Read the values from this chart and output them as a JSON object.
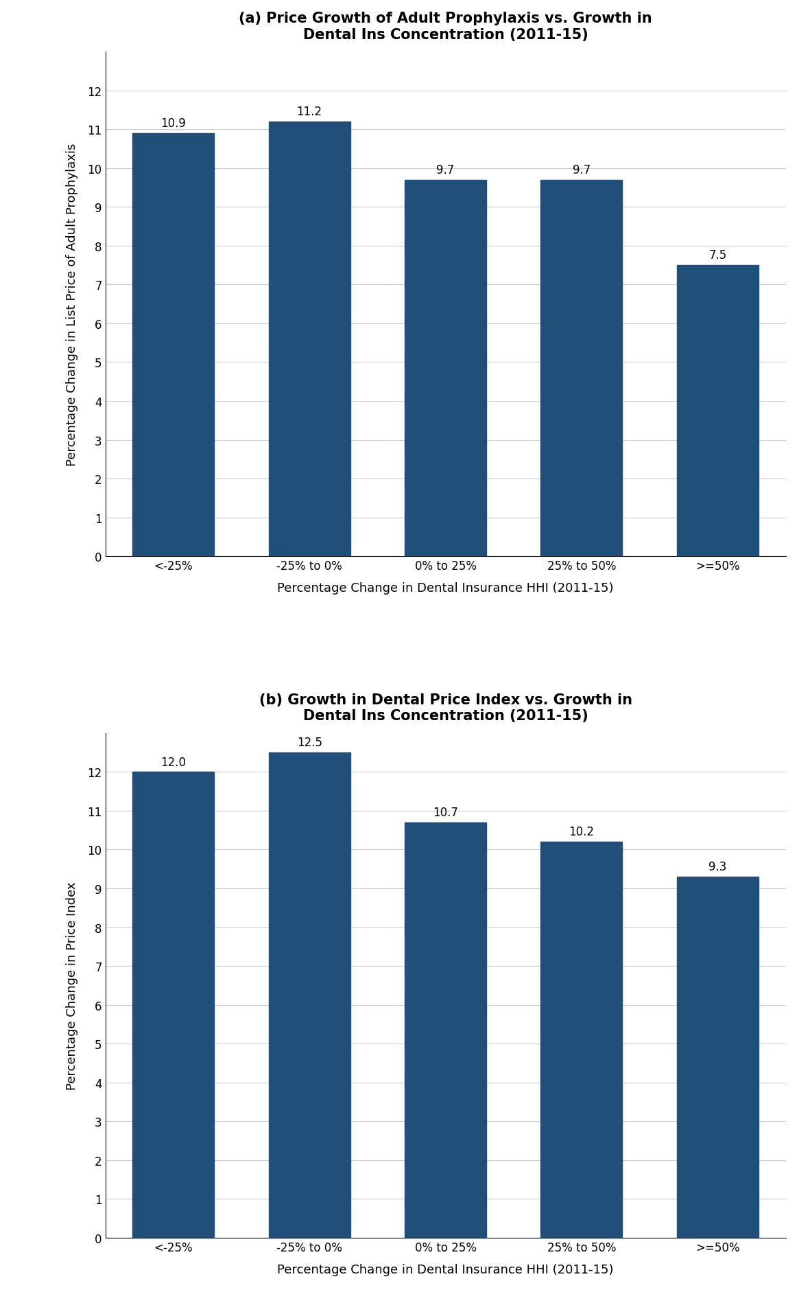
{
  "chart_a": {
    "title_bold": "(a)",
    "title_line1_rest": " Price Growth of Adult Prophylaxis vs. Growth in",
    "title_line2": "Dental Ins Concentration (2011-15)",
    "categories": [
      "<-25%",
      "-25% to 0%",
      "0% to 25%",
      "25% to 50%",
      ">=50%"
    ],
    "values": [
      10.9,
      11.2,
      9.7,
      9.7,
      7.5
    ],
    "ylabel": "Percentage Change in List Price of Adult Prophylaxis",
    "xlabel": "Percentage Change in Dental Insurance HHI (2011-15)",
    "ylim": [
      0,
      13
    ],
    "yticks": [
      0,
      1,
      2,
      3,
      4,
      5,
      6,
      7,
      8,
      9,
      10,
      11,
      12
    ]
  },
  "chart_b": {
    "title_bold": "(b)",
    "title_line1_rest": " Growth in Dental Price Index vs. Growth in",
    "title_line2": "Dental Ins Concentration (2011-15)",
    "categories": [
      "<-25%",
      "-25% to 0%",
      "0% to 25%",
      "25% to 50%",
      ">=50%"
    ],
    "values": [
      12.0,
      12.5,
      10.7,
      10.2,
      9.3
    ],
    "ylabel": "Percentage Change in Price Index",
    "xlabel": "Percentage Change in Dental Insurance HHI (2011-15)",
    "ylim": [
      0,
      13
    ],
    "yticks": [
      0,
      1,
      2,
      3,
      4,
      5,
      6,
      7,
      8,
      9,
      10,
      11,
      12
    ]
  },
  "bar_color": "#1f4e79",
  "bar_width": 0.6,
  "label_fontsize": 13,
  "title_fontsize": 15,
  "tick_fontsize": 12,
  "annotation_fontsize": 12,
  "background_color": "#ffffff",
  "grid_color": "#cccccc"
}
